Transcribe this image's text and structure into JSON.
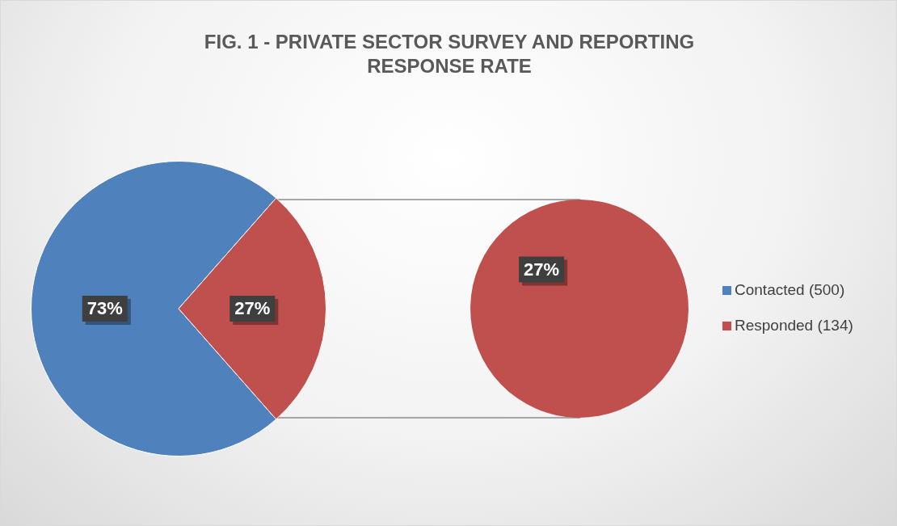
{
  "chart_data": [
    {
      "type": "pie",
      "title": "FIG. 1 - PRIVATE SECTOR SURVEY AND REPORTING RESPONSE RATE",
      "categories": [
        null,
        null
      ],
      "values": [
        73,
        27
      ],
      "colors": [
        "#4f81bd",
        "#c0504d"
      ],
      "value_labels": [
        "73%",
        "27%"
      ]
    },
    {
      "type": "pie",
      "categories": [
        "Contacted (500)",
        "Responded (134)"
      ],
      "values": [
        null,
        27
      ],
      "colors": [
        "#4f81bd",
        "#c0504d"
      ],
      "value_labels": [
        null,
        "27%"
      ],
      "legend": "right"
    }
  ]
}
